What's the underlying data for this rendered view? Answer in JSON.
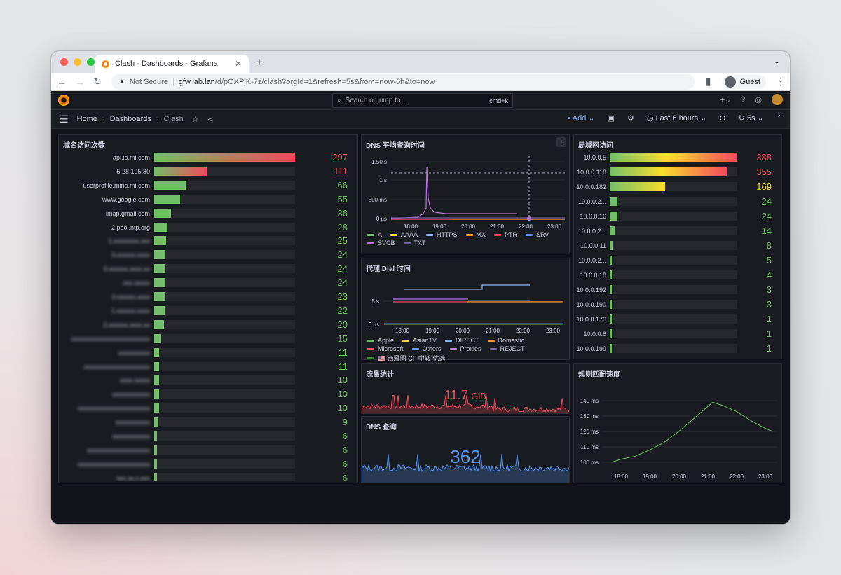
{
  "browser": {
    "tab_title": "Clash - Dashboards - Grafana",
    "url_not_secure": "Not Secure",
    "url_host": "gfw.lab.lan",
    "url_path": "/d/pOXPjK-7z/clash?orgId=1&refresh=5s&from=now-6h&to=now",
    "profile": "Guest",
    "traffic_lights": [
      "#fe5f57",
      "#febc2e",
      "#28c840"
    ]
  },
  "grafana": {
    "search_placeholder": "Search or jump to...",
    "search_shortcut": "cmd+k",
    "breadcrumbs": [
      "Home",
      "Dashboards",
      "Clash"
    ],
    "add_label": "Add",
    "time_range": "Last 6 hours",
    "refresh": "5s"
  },
  "panels": {
    "domains": {
      "title": "域名访问次数",
      "max": 297,
      "rows": [
        {
          "label": "api.io.mi.com",
          "value": 297,
          "blur": false
        },
        {
          "label": "5.28.195.80",
          "value": 111,
          "blur": false
        },
        {
          "label": "userprofile.mina.mi.com",
          "value": 66,
          "blur": false
        },
        {
          "label": "www.google.com",
          "value": 55,
          "blur": false
        },
        {
          "label": "imap.gmail.com",
          "value": 36,
          "blur": false
        },
        {
          "label": "2.pool.ntp.org",
          "value": 28,
          "blur": false
        },
        {
          "label": "1.xxxxxxxx.xxx",
          "value": 25,
          "blur": true
        },
        {
          "label": "3.xxxxxx.xxxx",
          "value": 24,
          "blur": true
        },
        {
          "label": "3.xxxxxx.xxxx.xx",
          "value": 24,
          "blur": true
        },
        {
          "label": "xxx.xxxxx",
          "value": 24,
          "blur": true
        },
        {
          "label": "3.xxxxxx.xxxx",
          "value": 23,
          "blur": true
        },
        {
          "label": "1.xxxxxx.xxxx",
          "value": 22,
          "blur": true
        },
        {
          "label": "2.xxxxxx.xxxx.xx",
          "value": 20,
          "blur": true
        },
        {
          "label": "xxxxxxxxxxxxxxxxxxxxxxxxx",
          "value": 15,
          "blur": true
        },
        {
          "label": "xxxxxxxxxx",
          "value": 11,
          "blur": true
        },
        {
          "label": "xxxxxxxxxxxxxxxxxxxxx",
          "value": 11,
          "blur": true
        },
        {
          "label": "xxxx.xxxxx",
          "value": 10,
          "blur": true
        },
        {
          "label": "xxxxxxxxxxxx",
          "value": 10,
          "blur": true
        },
        {
          "label": "xxxxxxxxxxxxxxxxxxxxxxx",
          "value": 10,
          "blur": true
        },
        {
          "label": "xxxxxxxxxxx",
          "value": 9,
          "blur": true
        },
        {
          "label": "xxxxxxxxxxxx",
          "value": 6,
          "blur": true
        },
        {
          "label": "xxxxxxxxxxxxxxxxxxxx",
          "value": 6,
          "blur": true
        },
        {
          "label": "xxxxxxxxxxxxxxxxxxxxxxx",
          "value": 6,
          "blur": true
        },
        {
          "label": "xxx.xx.x.xxx",
          "value": 6,
          "blur": true
        }
      ]
    },
    "dns_avg": {
      "title": "DNS 平均查询时间",
      "y_ticks": [
        "1.50 s",
        "1 s",
        "500 ms",
        "0 µs"
      ],
      "x_ticks": [
        "18:00",
        "19:00",
        "20:00",
        "21:00",
        "22:00",
        "23:00"
      ],
      "legend": [
        {
          "name": "A",
          "color": "#73bf69"
        },
        {
          "name": "AAAA",
          "color": "#fade2a"
        },
        {
          "name": "HTTPS",
          "color": "#8ab8ff"
        },
        {
          "name": "MX",
          "color": "#ff9830"
        },
        {
          "name": "PTR",
          "color": "#f2495c"
        },
        {
          "name": "SRV",
          "color": "#5794f2"
        },
        {
          "name": "SVCB",
          "color": "#b877d9"
        },
        {
          "name": "TXT",
          "color": "#705da0"
        }
      ]
    },
    "dial": {
      "title": "代理 Dial 时间",
      "y_ticks": [
        "5 s",
        "0 µs"
      ],
      "x_ticks": [
        "18:00",
        "19:00",
        "20:00",
        "21:00",
        "22:00",
        "23:00"
      ],
      "legend": [
        {
          "name": "Apple",
          "color": "#73bf69"
        },
        {
          "name": "AsianTV",
          "color": "#fade2a"
        },
        {
          "name": "DIRECT",
          "color": "#8ab8ff"
        },
        {
          "name": "Domestic",
          "color": "#ff9830"
        },
        {
          "name": "Microsoft",
          "color": "#f2495c"
        },
        {
          "name": "Others",
          "color": "#5794f2"
        },
        {
          "name": "Proxies",
          "color": "#b877d9"
        },
        {
          "name": "REJECT",
          "color": "#705da0"
        },
        {
          "name": "🇺🇸 西雅图 CF 中转 优选",
          "color": "#37872d"
        }
      ]
    },
    "traffic": {
      "title": "流量统计",
      "value": "11.7",
      "unit": "GiB",
      "color": "#f2495c"
    },
    "dns_query": {
      "title": "DNS 查询",
      "value": "362",
      "color": "#5794f2"
    },
    "lan": {
      "title": "局域网访问",
      "max": 388,
      "rows": [
        {
          "label": "10.0.0.5",
          "value": 388
        },
        {
          "label": "10.0.0.118",
          "value": 355
        },
        {
          "label": "10.0.0.182",
          "value": 169
        },
        {
          "label": "10.0.0.2...",
          "value": 24
        },
        {
          "label": "10.0.0.16",
          "value": 24
        },
        {
          "label": "10.0.0.2...",
          "value": 14
        },
        {
          "label": "10.0.0.11",
          "value": 8
        },
        {
          "label": "10.0.0.2...",
          "value": 5
        },
        {
          "label": "10.0.0.18",
          "value": 4
        },
        {
          "label": "10.0.0.192",
          "value": 3
        },
        {
          "label": "10.0.0.190",
          "value": 3
        },
        {
          "label": "10.0.0.170",
          "value": 1
        },
        {
          "label": "10.0.0.8",
          "value": 1
        },
        {
          "label": "10.0.0.199",
          "value": 1
        }
      ]
    },
    "rule_speed": {
      "title": "规则匹配速度",
      "y_ticks": [
        "140 ms",
        "130 ms",
        "120 ms",
        "110 ms",
        "100 ms"
      ],
      "x_ticks": [
        "18:00",
        "19:00",
        "20:00",
        "21:00",
        "22:00",
        "23:00"
      ],
      "chart_data": {
        "type": "line",
        "x": [
          "17:40",
          "18:00",
          "18:30",
          "19:00",
          "19:30",
          "20:00",
          "20:30",
          "21:00",
          "21:10",
          "21:30",
          "22:00",
          "22:30",
          "23:00",
          "23:15"
        ],
        "values": [
          100,
          102,
          104,
          108,
          113,
          120,
          128,
          136,
          139,
          137,
          133,
          127,
          122,
          120
        ],
        "ylim": [
          100,
          140
        ]
      }
    }
  }
}
